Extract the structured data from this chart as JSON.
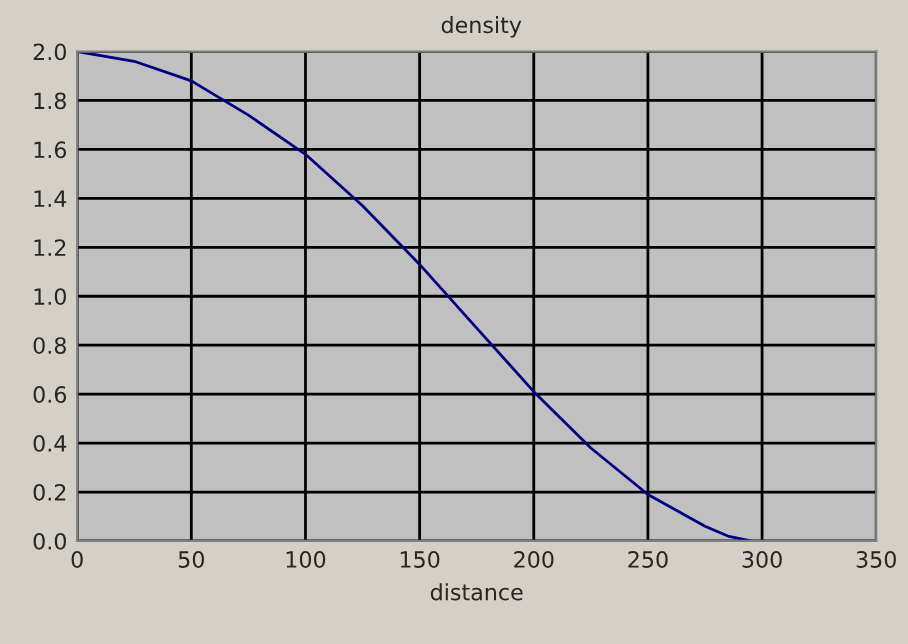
{
  "chart_data": {
    "type": "line",
    "title": "density",
    "xlabel": "distance",
    "series": [
      {
        "color": "#000080",
        "x": [
          0,
          25,
          50,
          75,
          100,
          125,
          150,
          175,
          200,
          225,
          250,
          275,
          285,
          295
        ],
        "values": [
          2.0,
          1.96,
          1.88,
          1.74,
          1.58,
          1.37,
          1.13,
          0.87,
          0.61,
          0.38,
          0.19,
          0.06,
          0.02,
          0.0
        ]
      }
    ],
    "xlim": [
      0,
      350
    ],
    "xticks": [
      0,
      50,
      100,
      150,
      200,
      250,
      300,
      350
    ],
    "ylim": [
      0,
      2.0
    ],
    "yticks": [
      {
        "value": 0,
        "label": "0.0"
      },
      0.2,
      0.4,
      0.6,
      0.8,
      {
        "value": 1.0,
        "label": "1.0"
      },
      1.2,
      1.4,
      1.6,
      1.8,
      {
        "value": 2.0,
        "label": "2.0"
      }
    ],
    "grid": true,
    "marker": "none",
    "line_style": "solid"
  }
}
